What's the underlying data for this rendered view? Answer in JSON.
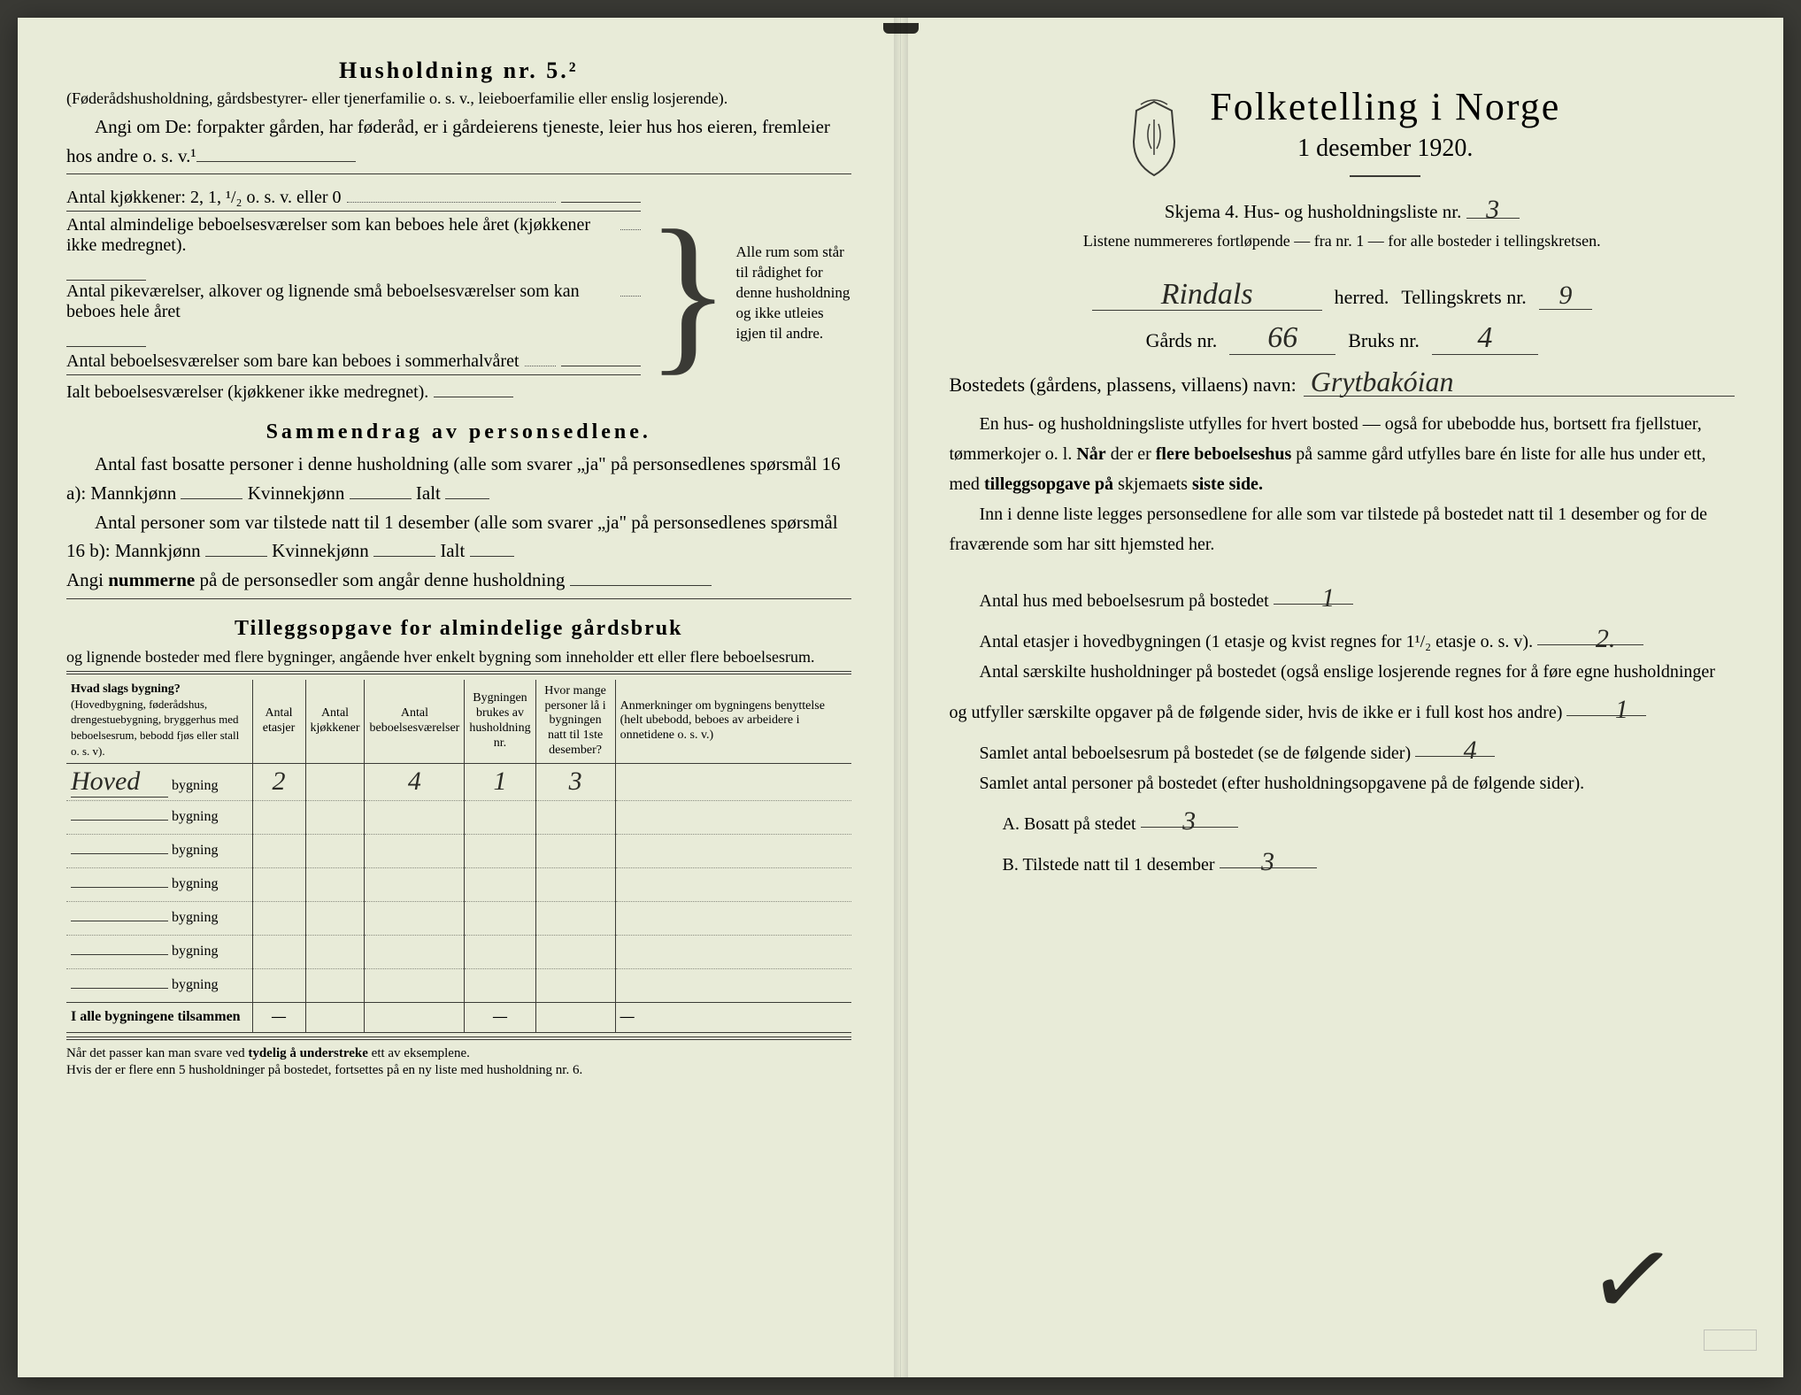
{
  "colors": {
    "paper": "#e8ebd8",
    "ink": "#3a3a35",
    "hand": "#2a2a25",
    "background": "#3a3a35"
  },
  "typography": {
    "body_fontsize": 21,
    "small_fontsize": 18,
    "title_fontsize": 44,
    "subtitle_fontsize": 28,
    "section_fontsize": 26,
    "hand_fontsize": 30,
    "table_fontsize": 16,
    "footnote_fontsize": 15
  },
  "left": {
    "heading": "Husholdning nr. 5.²",
    "heading_paren": "(Føderådshusholdning, gårdsbestyrer- eller tjenerfamilie o. s. v., leieboerfamilie eller enslig losjerende).",
    "angi_line": "Angi om De: forpakter gården, har føderåd, er i gårdeierens tjeneste, leier hus hos eieren, fremleier hos andre o. s. v.¹",
    "kitchen_line": "Antal kjøkkener: 2, 1, ¹/₂ o. s. v. eller 0",
    "room_lines": [
      "Antal almindelige beboelsesværelser som kan beboes hele året (kjøkkener ikke medregnet).",
      "Antal pikeværelser, alkover og lignende små beboelsesværelser som kan beboes hele året",
      "Antal beboelsesværelser som bare kan beboes i sommerhalvåret",
      "Ialt beboelsesværelser (kjøkkener ikke medregnet)."
    ],
    "brace_note": "Alle rum som står til rådighet for denne husholdning og ikke utleies igjen til andre.",
    "sammendrag_heading": "Sammendrag av personsedlene.",
    "sammendrag_p1": "Antal fast bosatte personer i denne husholdning (alle som svarer „ja\" på personsedlenes spørsmål 16 a): Mannkjønn",
    "kvinne": "Kvinnekjønn",
    "ialt": "Ialt",
    "sammendrag_p2": "Antal personer som var tilstede natt til 1 desember (alle som svarer „ja\" på personsedlenes spørsmål 16 b): Mannkjønn",
    "angi_num": "Angi nummerne på de personsedler som angår denne husholdning",
    "tillegg_heading": "Tilleggsopgave for almindelige gårdsbruk",
    "tillegg_sub": "og lignende bosteder med flere bygninger, angående hver enkelt bygning som inneholder ett eller flere beboelsesrum.",
    "table": {
      "columns": [
        "Hvad slags bygning?",
        "Antal etasjer",
        "Antal kjøkkener",
        "Antal beboelsesværelser",
        "Bygningen brukes av husholdning nr.",
        "Hvor mange personer lå i bygningen natt til 1ste desember?",
        "Anmerkninger om bygningens benyttelse (helt ubebodd, beboes av arbeidere i onnetidene o. s. v.)"
      ],
      "col1_sub": "(Hovedbygning, føderådshus, drengestuebygning, bryggerhus med beboelsesrum, bebodd fjøs eller stall o. s. v).",
      "row_suffix": "bygning",
      "rows": [
        {
          "name": "Hoved",
          "etasjer": "2",
          "kjokkener": "",
          "beboelser": "4",
          "hushold": "1",
          "personer": "3",
          "anm": ""
        },
        {
          "name": "",
          "etasjer": "",
          "kjokkener": "",
          "beboelser": "",
          "hushold": "",
          "personer": "",
          "anm": ""
        },
        {
          "name": "",
          "etasjer": "",
          "kjokkener": "",
          "beboelser": "",
          "hushold": "",
          "personer": "",
          "anm": ""
        },
        {
          "name": "",
          "etasjer": "",
          "kjokkener": "",
          "beboelser": "",
          "hushold": "",
          "personer": "",
          "anm": ""
        },
        {
          "name": "",
          "etasjer": "",
          "kjokkener": "",
          "beboelser": "",
          "hushold": "",
          "personer": "",
          "anm": ""
        },
        {
          "name": "",
          "etasjer": "",
          "kjokkener": "",
          "beboelser": "",
          "hushold": "",
          "personer": "",
          "anm": ""
        },
        {
          "name": "",
          "etasjer": "",
          "kjokkener": "",
          "beboelser": "",
          "hushold": "",
          "personer": "",
          "anm": ""
        }
      ],
      "total_label": "I alle bygningene tilsammen",
      "total_row": {
        "etasjer": "—",
        "kjokkener": "",
        "beboelser": "",
        "hushold": "—",
        "personer": "",
        "anm": "—"
      }
    },
    "footnote": "Når det passer kan man svare ved tydelig å understreke ett av eksemplene.\nHvis der er flere enn 5 husholdninger på bostedet, fortsettes på en ny liste med husholdning nr. 6."
  },
  "right": {
    "title": "Folketelling i Norge",
    "subtitle": "1 desember 1920.",
    "skjema_line": "Skjema 4.  Hus- og husholdningsliste nr.",
    "skjema_nr": "3",
    "listene_note": "Listene nummereres fortløpende — fra nr. 1 — for alle bosteder i tellingskretsen.",
    "herred_value": "Rindals",
    "herred_label": "herred.",
    "tellingskrets_label": "Tellingskrets nr.",
    "tellingskrets_nr": "9",
    "gards_label": "Gårds nr.",
    "gards_nr": "66",
    "bruks_label": "Bruks nr.",
    "bruks_nr": "4",
    "bosted_label": "Bostedets (gårdens, plassens, villaens) navn:",
    "bosted_value": "Grytbakóian",
    "para1": "En hus- og husholdningsliste utfylles for hvert bosted — også for ubebodde hus, bortsett fra fjellstuer, tømmerkojer o. l.  Når der er flere beboelseshus på samme gård utfylles bare én liste for alle hus under ett, med tilleggsopgave på skjemaets siste side.",
    "para2": "Inn i denne liste legges personsedlene for alle som var tilstede på bostedet natt til 1 desember og for de fraværende som har sitt hjemsted her.",
    "q_hus": "Antal hus med beboelsesrum på bostedet",
    "q_hus_val": "1",
    "q_etasjer": "Antal etasjer i hovedbygningen (1 etasje og kvist regnes for 1¹/₂ etasje o. s. v).",
    "q_etasjer_val": "2.",
    "q_hush": "Antal særskilte husholdninger på bostedet (også enslige losjerende regnes for å føre egne husholdninger og utfyller særskilte opgaver på de følgende sider, hvis de ikke er i full kost hos andre)",
    "q_hush_val": "1",
    "q_samlet_rom": "Samlet antal beboelsesrum på bostedet (se de følgende sider)",
    "q_samlet_rom_val": "4",
    "q_samlet_pers": "Samlet antal personer på bostedet (efter husholdningsopgavene på de følgende sider).",
    "q_a_label": "A.  Bosatt på stedet",
    "q_a_val": "3",
    "q_b_label": "B.  Tilstede natt til 1 desember",
    "q_b_val": "3"
  }
}
